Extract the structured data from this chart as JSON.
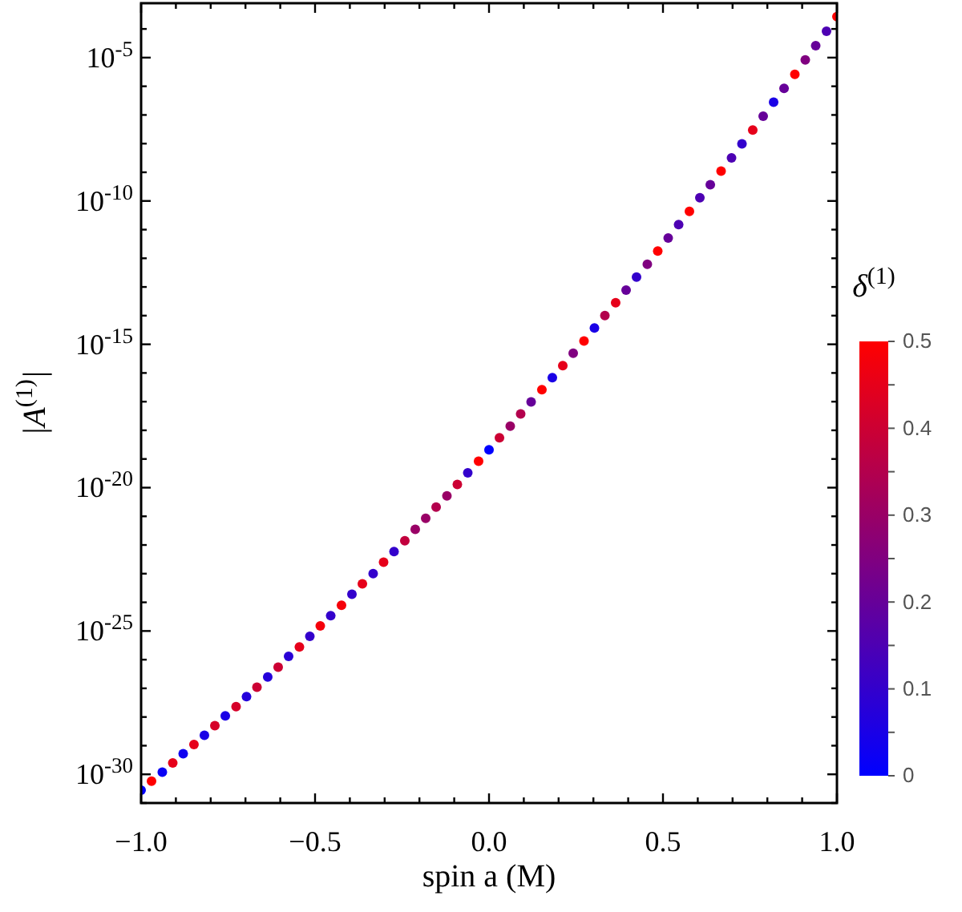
{
  "chart_data": {
    "type": "scatter",
    "xlabel": "spin a (M)",
    "ylabel": "|A$^{(1)}$|",
    "clabel": "δ$^{(1)}$",
    "log": "y",
    "grid": false,
    "marker": "circle",
    "xlim": [
      -1,
      1
    ],
    "ylim": [
      1e-31,
      0.00079
    ],
    "xticks": [
      {
        "value": -1,
        "label": "−1.0"
      },
      {
        "value": -0.9,
        "label": null
      },
      {
        "value": -0.8,
        "label": null
      },
      {
        "value": -0.7,
        "label": null
      },
      {
        "value": -0.6,
        "label": null
      },
      {
        "value": -0.5,
        "label": "−0.5"
      },
      {
        "value": -0.4,
        "label": null
      },
      {
        "value": -0.3,
        "label": null
      },
      {
        "value": -0.2,
        "label": null
      },
      {
        "value": -0.1,
        "label": null
      },
      {
        "value": 0,
        "label": "0.0"
      },
      {
        "value": 0.1,
        "label": null
      },
      {
        "value": 0.2,
        "label": null
      },
      {
        "value": 0.3,
        "label": null
      },
      {
        "value": 0.4,
        "label": null
      },
      {
        "value": 0.5,
        "label": "0.5"
      },
      {
        "value": 0.6,
        "label": null
      },
      {
        "value": 0.7,
        "label": null
      },
      {
        "value": 0.8,
        "label": null
      },
      {
        "value": 0.9,
        "label": null
      },
      {
        "value": 1,
        "label": "1.0"
      }
    ],
    "yticks": [
      {
        "value": 1e-31,
        "label": null
      },
      {
        "value": 1e-30,
        "label": "10$^{-30}$"
      },
      {
        "value": 1e-29,
        "label": null
      },
      {
        "value": 1e-28,
        "label": null
      },
      {
        "value": 1e-27,
        "label": null
      },
      {
        "value": 1e-26,
        "label": null
      },
      {
        "value": 1e-25,
        "label": "10$^{-25}$"
      },
      {
        "value": 1e-24,
        "label": null
      },
      {
        "value": 1e-23,
        "label": null
      },
      {
        "value": 1e-22,
        "label": null
      },
      {
        "value": 1e-21,
        "label": null
      },
      {
        "value": 1e-20,
        "label": "10$^{-20}$"
      },
      {
        "value": 1e-19,
        "label": null
      },
      {
        "value": 1e-18,
        "label": null
      },
      {
        "value": 1e-17,
        "label": null
      },
      {
        "value": 1e-16,
        "label": null
      },
      {
        "value": 1e-15,
        "label": "10$^{-15}$"
      },
      {
        "value": 1e-14,
        "label": null
      },
      {
        "value": 1e-13,
        "label": null
      },
      {
        "value": 1e-12,
        "label": null
      },
      {
        "value": 1e-11,
        "label": null
      },
      {
        "value": 1e-10,
        "label": "10$^{-10}$"
      },
      {
        "value": 1e-09,
        "label": null
      },
      {
        "value": 1e-08,
        "label": null
      },
      {
        "value": 1e-07,
        "label": null
      },
      {
        "value": 1e-06,
        "label": null
      },
      {
        "value": 1e-05,
        "label": "10$^{-5}$"
      },
      {
        "value": 0.0001,
        "label": null
      }
    ],
    "clim": [
      0,
      0.5
    ],
    "cticks": [
      0,
      {
        "value": 0.05,
        "label": null
      },
      0.1,
      {
        "value": 0.15,
        "label": null
      },
      0.2,
      {
        "value": 0.25,
        "label": null
      },
      0.3,
      {
        "value": 0.35,
        "label": null
      },
      0.4,
      {
        "value": 0.45,
        "label": null
      },
      0.5
    ],
    "x": [
      -1,
      -0.97,
      -0.939,
      -0.909,
      -0.879,
      -0.848,
      -0.818,
      -0.788,
      -0.758,
      -0.727,
      -0.697,
      -0.667,
      -0.636,
      -0.606,
      -0.576,
      -0.545,
      -0.515,
      -0.485,
      -0.455,
      -0.424,
      -0.394,
      -0.364,
      -0.333,
      -0.303,
      -0.273,
      -0.242,
      -0.212,
      -0.182,
      -0.152,
      -0.121,
      -0.091,
      -0.061,
      -0.03,
      0,
      0.03,
      0.061,
      0.091,
      0.121,
      0.152,
      0.182,
      0.212,
      0.242,
      0.273,
      0.303,
      0.333,
      0.364,
      0.394,
      0.424,
      0.455,
      0.485,
      0.515,
      0.545,
      0.576,
      0.606,
      0.636,
      0.667,
      0.697,
      0.727,
      0.758,
      0.788,
      0.818,
      0.848,
      0.879,
      0.909,
      0.939,
      0.97,
      1
    ],
    "values": [
      2.8e-31,
      5.8e-31,
      1.2e-30,
      2.5e-30,
      5.2e-30,
      1.1e-29,
      2.3e-29,
      5e-29,
      1.1e-28,
      2.3e-28,
      5.1e-28,
      1.1e-27,
      2.5e-27,
      5.5e-27,
      1.3e-26,
      2.8e-26,
      6.5e-26,
      1.5e-25,
      3.4e-25,
      7.9e-25,
      1.9e-24,
      4.4e-24,
      1e-23,
      2.5e-23,
      5.9e-23,
      1.4e-22,
      3.5e-22,
      8.5e-22,
      2.1e-21,
      5.2e-21,
      1.3e-20,
      3.3e-20,
      8.3e-20,
      2.1e-19,
      5.5e-19,
      1.4e-18,
      3.7e-18,
      9.8e-18,
      2.6e-17,
      6.9e-17,
      1.8e-16,
      4.9e-16,
      1.3e-15,
      3.7e-15,
      1e-14,
      2.8e-14,
      7.8e-14,
      2.2e-13,
      6.2e-13,
      1.8e-12,
      5.1e-12,
      1.5e-11,
      4.3e-11,
      1.3e-10,
      3.7e-10,
      1.1e-09,
      3.2e-09,
      9.8e-09,
      3e-08,
      9.1e-08,
      2.8e-07,
      8.5e-07,
      2.6e-06,
      8.3e-06,
      2.6e-05,
      8.3e-05,
      0.00027
    ],
    "cvalues": [
      0,
      0.5,
      0.02,
      0.45,
      0.03,
      0.45,
      0.05,
      0.42,
      0.05,
      0.42,
      0.07,
      0.4,
      0.07,
      0.4,
      0.08,
      0.45,
      0.1,
      0.48,
      0.1,
      0.48,
      0.1,
      0.45,
      0.1,
      0.45,
      0.1,
      0.38,
      0.3,
      0.3,
      0.35,
      0.3,
      0.4,
      0.1,
      0.5,
      0,
      0.4,
      0.3,
      0.35,
      0.2,
      0.5,
      0.05,
      0.45,
      0.25,
      0.5,
      0.05,
      0.35,
      0.45,
      0.2,
      0.1,
      0.25,
      0.5,
      0.2,
      0.15,
      0.5,
      0.15,
      0.2,
      0.5,
      0.15,
      0.1,
      0.45,
      0.2,
      0.05,
      0.2,
      0.5,
      0.25,
      0.2,
      0.15,
      0.5
    ]
  }
}
